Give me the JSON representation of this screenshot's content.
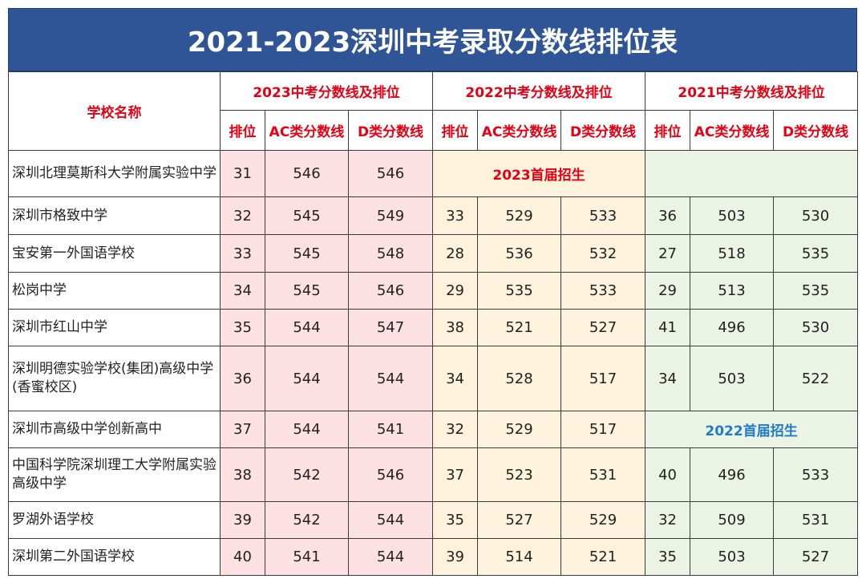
{
  "title": "2021-2023深圳中考录取分数线排位表",
  "header": {
    "school": "学校名称",
    "groups": [
      "2023中考分数线及排位",
      "2022中考分数线及排位",
      "2021中考分数线及排位"
    ],
    "sub": [
      "排位",
      "AC类分数线",
      "D类分数线"
    ]
  },
  "notes": {
    "first_2023": "2023首届招生",
    "first_2022": "2022首届招生"
  },
  "rows": [
    {
      "school": "深圳北理莫斯科大学附属实验中学",
      "y2023": [
        "31",
        "546",
        "546"
      ],
      "y2022": null,
      "y2021": null
    },
    {
      "school": "深圳市格致中学",
      "y2023": [
        "32",
        "545",
        "549"
      ],
      "y2022": [
        "33",
        "529",
        "533"
      ],
      "y2021": [
        "36",
        "503",
        "530"
      ]
    },
    {
      "school": "宝安第一外国语学校",
      "y2023": [
        "33",
        "545",
        "548"
      ],
      "y2022": [
        "28",
        "536",
        "532"
      ],
      "y2021": [
        "27",
        "518",
        "535"
      ]
    },
    {
      "school": "松岗中学",
      "y2023": [
        "34",
        "545",
        "546"
      ],
      "y2022": [
        "29",
        "535",
        "533"
      ],
      "y2021": [
        "29",
        "513",
        "535"
      ]
    },
    {
      "school": "深圳市红山中学",
      "y2023": [
        "35",
        "544",
        "547"
      ],
      "y2022": [
        "38",
        "521",
        "527"
      ],
      "y2021": [
        "41",
        "496",
        "530"
      ]
    },
    {
      "school": "深圳明德实验学校(集团)高级中学(香蜜校区)",
      "y2023": [
        "36",
        "544",
        "544"
      ],
      "y2022": [
        "34",
        "528",
        "517"
      ],
      "y2021": [
        "34",
        "503",
        "522"
      ]
    },
    {
      "school": "深圳市高级中学创新高中",
      "y2023": [
        "37",
        "544",
        "541"
      ],
      "y2022": [
        "32",
        "529",
        "517"
      ],
      "y2021": null
    },
    {
      "school": "中国科学院深圳理工大学附属实验高级中学",
      "y2023": [
        "38",
        "542",
        "546"
      ],
      "y2022": [
        "37",
        "523",
        "531"
      ],
      "y2021": [
        "40",
        "496",
        "533"
      ]
    },
    {
      "school": "罗湖外语学校",
      "y2023": [
        "39",
        "542",
        "544"
      ],
      "y2022": [
        "35",
        "527",
        "529"
      ],
      "y2021": [
        "32",
        "509",
        "531"
      ]
    },
    {
      "school": "深圳第二外国语学校",
      "y2023": [
        "40",
        "541",
        "544"
      ],
      "y2022": [
        "39",
        "514",
        "521"
      ],
      "y2021": [
        "35",
        "503",
        "527"
      ]
    }
  ]
}
